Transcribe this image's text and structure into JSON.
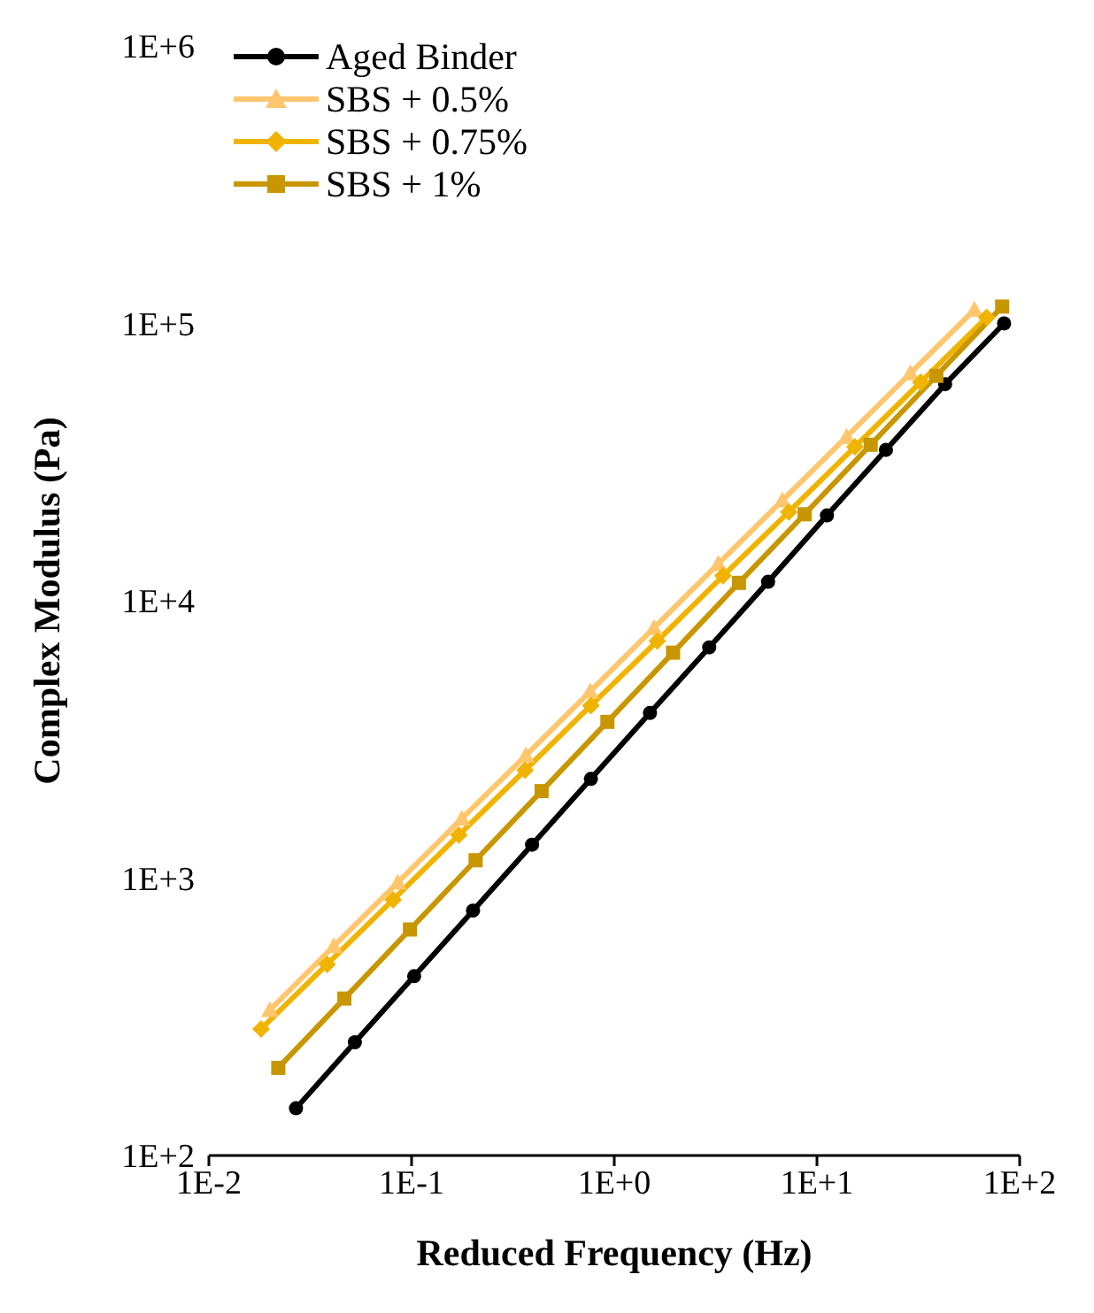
{
  "chart_data": {
    "type": "line",
    "xlabel": "Reduced Frequency (Hz)",
    "ylabel": "Complex Modulus (Pa)",
    "log": "xy",
    "xlim": [
      0.01,
      100
    ],
    "ylim": [
      100,
      1000000
    ],
    "xticks": [
      {
        "value": 0.01,
        "label": "1E-2"
      },
      {
        "value": 0.1,
        "label": "1E-1"
      },
      {
        "value": 1,
        "label": "1E+0"
      },
      {
        "value": 10,
        "label": "1E+1"
      },
      {
        "value": 100,
        "label": "1E+2"
      }
    ],
    "yticks": [
      {
        "value": 100,
        "label": "1E+2"
      },
      {
        "value": 1000,
        "label": "1E+3"
      },
      {
        "value": 10000,
        "label": "1E+4"
      },
      {
        "value": 100000,
        "label": "1E+5"
      },
      {
        "value": 1000000,
        "label": "1E+6"
      }
    ],
    "grid": false,
    "legend": "top left",
    "line_style": "solid",
    "series": [
      {
        "name": "Aged Binder",
        "color": "#000000",
        "marker": "circle",
        "x": [
          0.0269,
          0.0525,
          0.103,
          0.201,
          0.393,
          0.767,
          1.5,
          2.94,
          5.74,
          11.2,
          21.9,
          42.9,
          83.8
        ],
        "values": [
          148,
          256,
          443,
          764,
          1320,
          2280,
          3940,
          6790,
          11700,
          20300,
          35000,
          60400,
          100000
        ]
      },
      {
        "name": "SBS + 0.5%",
        "color": "#ffc66d",
        "marker": "triangle",
        "x": [
          0.02,
          0.0413,
          0.0855,
          0.177,
          0.366,
          0.76,
          1.57,
          3.26,
          6.75,
          14,
          28.9,
          59.8
        ],
        "values": [
          335,
          569,
          964,
          1640,
          2770,
          4710,
          7980,
          13600,
          23000,
          39000,
          66100,
          112000
        ]
      },
      {
        "name": "SBS + 0.75%",
        "color": "#f0b400",
        "marker": "diamond",
        "x": [
          0.0181,
          0.0383,
          0.0811,
          0.171,
          0.363,
          0.767,
          1.63,
          3.44,
          7.26,
          15.4,
          32.5,
          68.7
        ],
        "values": [
          286,
          489,
          836,
          1430,
          2450,
          4190,
          7160,
          12300,
          20900,
          35900,
          61400,
          105000
        ]
      },
      {
        "name": "SBS + 1%",
        "color": "#c89600",
        "marker": "square",
        "x": [
          0.022,
          0.0466,
          0.0982,
          0.207,
          0.438,
          0.925,
          1.95,
          4.12,
          8.69,
          18.4,
          38.8,
          82
        ],
        "values": [
          207,
          368,
          653,
          1160,
          2060,
          3660,
          6500,
          11600,
          20500,
          36500,
          64700,
          115000
        ]
      }
    ]
  }
}
